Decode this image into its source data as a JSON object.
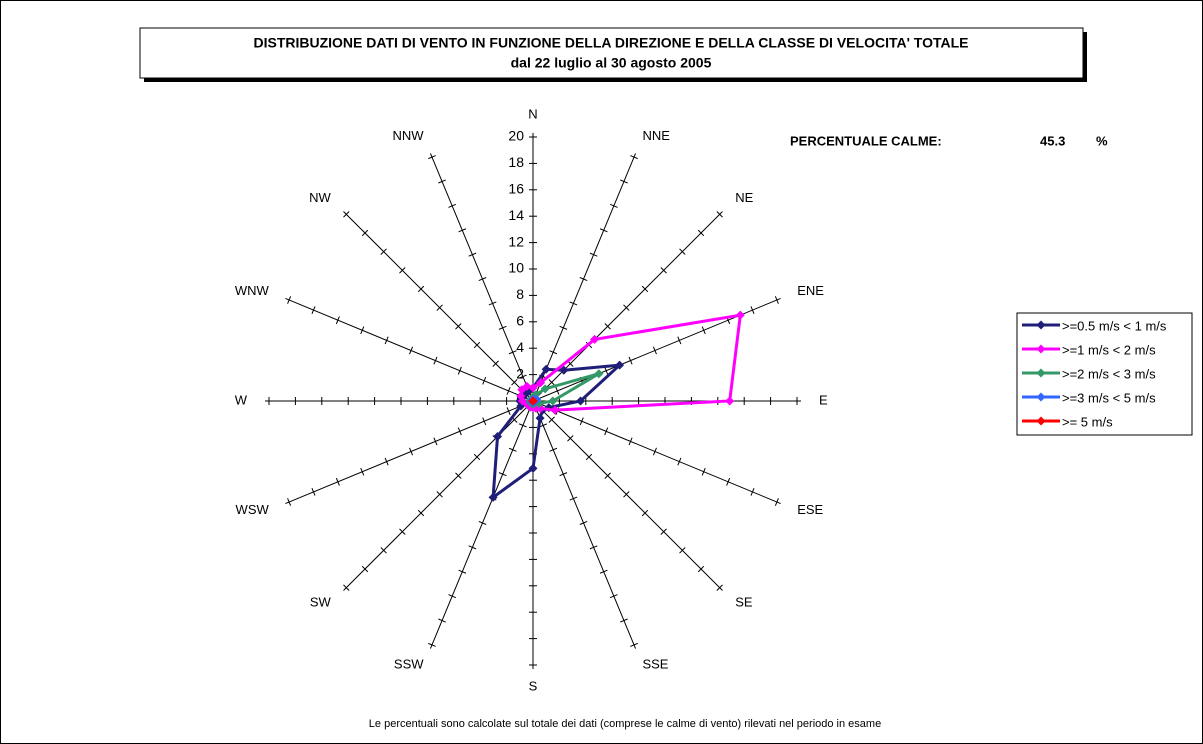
{
  "chart_data": {
    "type": "radar",
    "title": "DISTRIBUZIONE DATI DI VENTO IN FUNZIONE DELLA DIREZIONE E DELLA CLASSE DI VELOCITA' TOTALE",
    "subtitle": "dal 22 luglio al 30 agosto 2005",
    "categories": [
      "N",
      "NNE",
      "NE",
      "ENE",
      "E",
      "ESE",
      "SE",
      "SSE",
      "S",
      "SSW",
      "SW",
      "WSW",
      "W",
      "WNW",
      "NW",
      "NNW"
    ],
    "series": [
      {
        "name": ">=0.5 m/s < 1 m/s",
        "color": "#1f1f7a",
        "values": [
          1.0,
          2.6,
          3.3,
          7.1,
          3.6,
          1.3,
          1.0,
          1.4,
          5.1,
          7.9,
          3.8,
          1.0,
          1.0,
          0.8,
          0.8,
          0.8
        ]
      },
      {
        "name": ">=1 m/s < 2 m/s",
        "color": "#ff00ff",
        "values": [
          1.0,
          1.5,
          6.6,
          17.0,
          14.9,
          1.8,
          0.8,
          0.6,
          0.5,
          0.5,
          0.5,
          0.5,
          0.8,
          1.0,
          1.2,
          1.2
        ]
      },
      {
        "name": ">=2 m/s < 3 m/s",
        "color": "#339966",
        "values": [
          0.3,
          0.5,
          1.3,
          5.4,
          1.5,
          0.5,
          0.2,
          0.2,
          0.2,
          0.2,
          0.2,
          0.2,
          0.2,
          0.2,
          0.2,
          0.2
        ]
      },
      {
        "name": ">=3 m/s < 5 m/s",
        "color": "#3366ff",
        "values": [
          0.1,
          0.1,
          0.2,
          0.3,
          0.2,
          0.1,
          0.1,
          0.1,
          0.1,
          0.1,
          0.1,
          0.1,
          0.1,
          0.1,
          0.1,
          0.1
        ]
      },
      {
        "name": ">= 5 m/s",
        "color": "#ff0000",
        "values": [
          0,
          0,
          0,
          0,
          0,
          0,
          0,
          0,
          0,
          0,
          0,
          0,
          0,
          0,
          0,
          0
        ]
      }
    ],
    "rlim": [
      0,
      20
    ],
    "rticks": [
      0,
      2,
      4,
      6,
      8,
      10,
      12,
      14,
      16,
      18,
      20
    ],
    "calm_label": "PERCENTUALE CALME:",
    "calm_value": 45.3,
    "calm_unit": "%",
    "note": "Le percentuali sono calcolate sul totale dei dati (comprese le calme di vento) rilevati nel periodo in esame",
    "legend": "right"
  }
}
